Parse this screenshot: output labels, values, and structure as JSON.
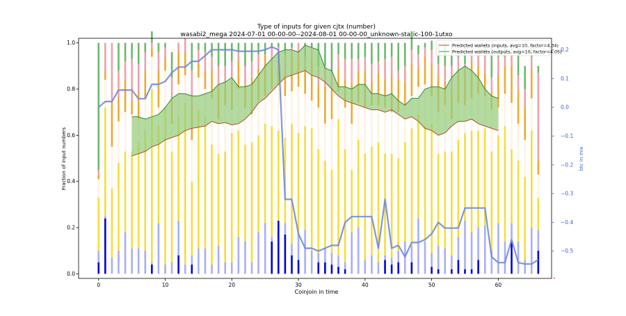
{
  "chart_data": {
    "type": "bar",
    "title": "Type of inputs for given cjtx (number)",
    "subtitle": "wasabi2_mega 2024-07-01 00-00-00--2024-08-01 00-00-00_unknown-static-100-1utxo",
    "xlabel": "Coinjoin in time",
    "ylabel": "Fraction of input numbers",
    "y2label": "btc in mix",
    "xlim": [
      -3,
      68
    ],
    "ylim": [
      -0.02,
      1.02
    ],
    "y2lim": [
      -0.595,
      0.24
    ],
    "xticks": [
      0,
      10,
      20,
      30,
      40,
      50,
      60
    ],
    "yticks": [
      0.0,
      0.2,
      0.4,
      0.6,
      0.8,
      1.0
    ],
    "y2ticks": [
      0.2,
      0.1,
      0.0,
      -0.1,
      -0.2,
      -0.3,
      -0.4,
      -0.5
    ],
    "grid": false,
    "legend_position": "top-right",
    "colors": {
      "stack": [
        "#0000dd",
        "#a8aef5",
        "#f5dd3a",
        "#fdf3e3",
        "#f0a830",
        "#f0a0a8",
        "#6cb86c"
      ],
      "inputs_line": "#f07050",
      "outputs_line": "#6cbc6c",
      "band_fill": "#96cc7c",
      "band_edge_low": "#b04a28",
      "band_edge_high": "#2c8a2c",
      "btc_line": "#7088dc",
      "right_axis": "#3c64c8"
    },
    "series": [
      {
        "values": [
          0.05,
          0.24,
          0,
          0,
          0,
          0,
          0,
          0,
          0.04,
          0,
          0,
          0,
          0.08,
          0,
          0.04,
          0,
          0,
          0,
          0,
          0,
          0,
          0,
          0,
          0,
          0,
          0,
          0.14,
          0.23,
          0.17,
          0.08,
          0.06,
          0,
          0,
          0.05,
          0.05,
          0.04,
          0.03,
          0.02,
          0,
          0,
          0,
          0,
          0,
          0.06,
          0.04,
          0.05,
          0,
          0.05,
          0,
          0,
          0.03,
          0.02,
          0,
          0.02,
          0.06,
          0.02,
          0.02,
          0.06,
          0,
          0,
          0,
          0,
          0.14,
          0,
          0,
          0,
          0.1
        ]
      },
      {
        "values": [
          0.05,
          0.01,
          0.07,
          0.1,
          0.18,
          0.11,
          0.11,
          0.1,
          0.01,
          0.22,
          0.04,
          0.05,
          0.15,
          0.04,
          0.04,
          0.11,
          0.11,
          0.04,
          0.12,
          0.05,
          0.05,
          0.16,
          0.14,
          0.05,
          0.18,
          0.22,
          0.02,
          0,
          0.05,
          0.05,
          0.11,
          0.19,
          0.1,
          0.04,
          0.06,
          0.05,
          0.05,
          0.03,
          0.18,
          0.2,
          0.06,
          0.08,
          0.05,
          0.02,
          0.03,
          0.05,
          0.14,
          0.07,
          0.24,
          0.14,
          0.06,
          0.1,
          0.11,
          0.06,
          0.1,
          0.21,
          0.16,
          0.14,
          0.21,
          0.1,
          0.22,
          0.14,
          0.08,
          0.14,
          0.06,
          0.2,
          0.09
        ]
      },
      {
        "values": [
          0.23,
          0.47,
          0.3,
          0.38,
          0.35,
          0.42,
          0.46,
          0.52,
          0.75,
          0.42,
          0.68,
          0.48,
          0.45,
          0.7,
          0.32,
          0.6,
          0.57,
          0.52,
          0.4,
          0.48,
          0.56,
          0.46,
          0.42,
          0.52,
          0.42,
          0.43,
          0.48,
          0.39,
          0.37,
          0.52,
          0.44,
          0.45,
          0.53,
          0.45,
          0.38,
          0.36,
          0.59,
          0.49,
          0.27,
          0.38,
          0.46,
          0.47,
          0.52,
          0.44,
          0.45,
          0.4,
          0.43,
          0.51,
          0.45,
          0.5,
          0.56,
          0.4,
          0.42,
          0.45,
          0.42,
          0.38,
          0.44,
          0.42,
          0.42,
          0.43,
          0.38,
          0.5,
          0.32,
          0.35,
          0.36,
          0.42,
          0.14
        ]
      },
      {
        "values": [
          0.08,
          0.12,
          0.18,
          0.18,
          0.17,
          0.16,
          0.1,
          0.14,
          0.14,
          0.08,
          0.16,
          0.12,
          0.14,
          0.12,
          0.18,
          0.14,
          0.12,
          0.2,
          0.15,
          0.2,
          0.1,
          0.18,
          0.16,
          0.12,
          0.15,
          0.12,
          0.16,
          0.2,
          0.18,
          0.14,
          0.2,
          0.14,
          0.12,
          0.18,
          0.16,
          0.22,
          0.12,
          0.18,
          0.2,
          0.16,
          0.2,
          0.18,
          0.16,
          0.2,
          0.18,
          0.2,
          0.16,
          0.14,
          0.12,
          0.18,
          0.12,
          0.18,
          0.2,
          0.14,
          0.16,
          0.12,
          0.14,
          0.16,
          0.14,
          0.18,
          0.12,
          0.14,
          0.2,
          0.16,
          0.16,
          0.14,
          0.1
        ]
      },
      {
        "values": [
          0.02,
          0.04,
          0.2,
          0.1,
          0.14,
          0.06,
          0.12,
          0.12,
          0.04,
          0.16,
          0.06,
          0.1,
          0.14,
          0.1,
          0.14,
          0.06,
          0.08,
          0.12,
          0.14,
          0.1,
          0.12,
          0.12,
          0.1,
          0.16,
          0.14,
          0.18,
          0.1,
          0.14,
          0.1,
          0.16,
          0.14,
          0.12,
          0.18,
          0.1,
          0.16,
          0.14,
          0.1,
          0.12,
          0.18,
          0.14,
          0.16,
          0.1,
          0.14,
          0.12,
          0.16,
          0.14,
          0.1,
          0.14,
          0.08,
          0.12,
          0.14,
          0.16,
          0.1,
          0.12,
          0.14,
          0.12,
          0.16,
          0.12,
          0.1,
          0.08,
          0.14,
          0.12,
          0.16,
          0.14,
          0.14,
          0.12,
          0.06
        ]
      },
      {
        "values": [
          0.02,
          0.12,
          0.25,
          0.12,
          0.08,
          0.18,
          0.12,
          0.08,
          0.02,
          0.08,
          0.04,
          0.1,
          0.04,
          0.06,
          0.16,
          0.06,
          0.08,
          0.06,
          0.09,
          0.07,
          0.09,
          0.04,
          0.08,
          0.07,
          0.06,
          0.0,
          0.08,
          0.02,
          0.08,
          0.03,
          0.05,
          0.04,
          0.05,
          0.08,
          0.09,
          0.06,
          0.06,
          0.09,
          0.1,
          0.05,
          0.06,
          0.08,
          0.05,
          0.09,
          0.08,
          0.04,
          0.07,
          0.06,
          0.06,
          0.04,
          0.06,
          0.05,
          0.07,
          0.11,
          0.06,
          0.06,
          0.07,
          0.06,
          0.08,
          0.06,
          0.08,
          0.04,
          0.06,
          0.07,
          0.08,
          0.06,
          0.38
        ]
      },
      {
        "values": [
          0.55,
          0,
          0,
          0.12,
          0.08,
          0.07,
          0.09,
          0.04,
          0.05,
          0.04,
          0.02,
          0.11,
          0,
          0,
          0.12,
          0.03,
          0.04,
          0.06,
          0.1,
          0.1,
          0.08,
          0.04,
          0.1,
          0.08,
          0.05,
          0.05,
          0.02,
          0.02,
          0.05,
          0.02,
          0,
          0.06,
          0.02,
          0.1,
          0.1,
          0.13,
          0.05,
          0.07,
          0.07,
          0.07,
          0.06,
          0.09,
          0.08,
          0.07,
          0.06,
          0.12,
          0.1,
          0.08,
          0.04,
          0.02,
          0.04,
          0.09,
          0.1,
          0.1,
          0.02,
          0.09,
          0.01,
          0.04,
          0.05,
          0.13,
          0.06,
          0.06,
          0.04,
          0.14,
          0.1,
          0.06,
          0.03
        ]
      }
    ],
    "lines": [
      {
        "name": "Predicted wallets (inputs, avg=10, factor=4.34)",
        "x": [
          5,
          6,
          7,
          8,
          9,
          10,
          11,
          12,
          13,
          14,
          15,
          16,
          17,
          18,
          19,
          20,
          21,
          22,
          23,
          24,
          25,
          26,
          27,
          28,
          29,
          30,
          31,
          32,
          33,
          34,
          35,
          36,
          37,
          38,
          39,
          40,
          41,
          42,
          43,
          44,
          45,
          46,
          47,
          48,
          49,
          50,
          51,
          52,
          53,
          54,
          55,
          56,
          57,
          58,
          59,
          60
        ],
        "y": [
          0.51,
          0.52,
          0.53,
          0.55,
          0.56,
          0.58,
          0.59,
          0.6,
          0.62,
          0.63,
          0.635,
          0.64,
          0.66,
          0.65,
          0.655,
          0.645,
          0.65,
          0.67,
          0.7,
          0.74,
          0.76,
          0.79,
          0.82,
          0.85,
          0.86,
          0.87,
          0.88,
          0.86,
          0.85,
          0.83,
          0.8,
          0.77,
          0.75,
          0.74,
          0.73,
          0.72,
          0.71,
          0.71,
          0.7,
          0.71,
          0.69,
          0.67,
          0.68,
          0.66,
          0.63,
          0.62,
          0.6,
          0.61,
          0.64,
          0.66,
          0.66,
          0.67,
          0.65,
          0.64,
          0.63,
          0.62
        ]
      },
      {
        "name": "Predicted wallets (outputs, avg=10, factor=4.05)",
        "x": [
          5,
          6,
          7,
          8,
          9,
          10,
          11,
          12,
          13,
          14,
          15,
          16,
          17,
          18,
          19,
          20,
          21,
          22,
          23,
          24,
          25,
          26,
          27,
          28,
          29,
          30,
          31,
          32,
          33,
          34,
          35,
          36,
          37,
          38,
          39,
          40,
          41,
          42,
          43,
          44,
          45,
          46,
          47,
          48,
          49,
          50,
          51,
          52,
          53,
          54,
          55,
          56,
          57,
          58,
          59,
          60
        ],
        "y": [
          0.68,
          0.68,
          0.67,
          0.68,
          0.69,
          0.72,
          0.76,
          0.78,
          0.78,
          0.77,
          0.77,
          0.78,
          0.79,
          0.82,
          0.83,
          0.85,
          0.81,
          0.81,
          0.82,
          0.86,
          0.9,
          0.93,
          0.96,
          0.97,
          0.97,
          0.96,
          0.99,
          0.98,
          0.97,
          0.89,
          0.88,
          0.81,
          0.81,
          0.8,
          0.82,
          0.82,
          0.78,
          0.78,
          0.77,
          0.78,
          0.75,
          0.73,
          0.76,
          0.76,
          0.8,
          0.81,
          0.81,
          0.8,
          0.85,
          0.88,
          0.9,
          0.88,
          0.85,
          0.8,
          0.77,
          0.76
        ]
      }
    ],
    "btc_line": {
      "name": "btc in mix",
      "x": [
        0,
        1,
        2,
        3,
        4,
        5,
        6,
        7,
        8,
        9,
        10,
        11,
        12,
        13,
        14,
        15,
        16,
        17,
        18,
        19,
        20,
        21,
        22,
        23,
        24,
        25,
        26,
        27,
        28,
        29,
        30,
        31,
        32,
        33,
        34,
        35,
        36,
        37,
        38,
        39,
        40,
        41,
        42,
        43,
        44,
        45,
        46,
        47,
        48,
        49,
        50,
        51,
        52,
        53,
        54,
        55,
        56,
        57,
        58,
        59,
        60,
        61,
        62,
        63,
        64,
        65,
        66
      ],
      "y": [
        0.0,
        0.02,
        0.02,
        0.06,
        0.06,
        0.06,
        0.03,
        0.03,
        0.08,
        0.08,
        0.09,
        0.12,
        0.14,
        0.14,
        0.16,
        0.16,
        0.18,
        0.2,
        0.2,
        0.2,
        0.2,
        0.195,
        0.195,
        0.195,
        0.195,
        0.2,
        0.21,
        0.2,
        -0.32,
        -0.32,
        -0.44,
        -0.49,
        -0.49,
        -0.5,
        -0.49,
        -0.48,
        -0.48,
        -0.4,
        -0.38,
        -0.38,
        -0.38,
        -0.38,
        -0.49,
        -0.32,
        -0.49,
        -0.48,
        -0.52,
        -0.47,
        -0.47,
        -0.46,
        -0.44,
        -0.4,
        -0.42,
        -0.42,
        -0.42,
        -0.35,
        -0.35,
        -0.35,
        -0.35,
        -0.52,
        -0.54,
        -0.54,
        -0.46,
        -0.54,
        -0.545,
        -0.545,
        -0.53
      ]
    }
  }
}
